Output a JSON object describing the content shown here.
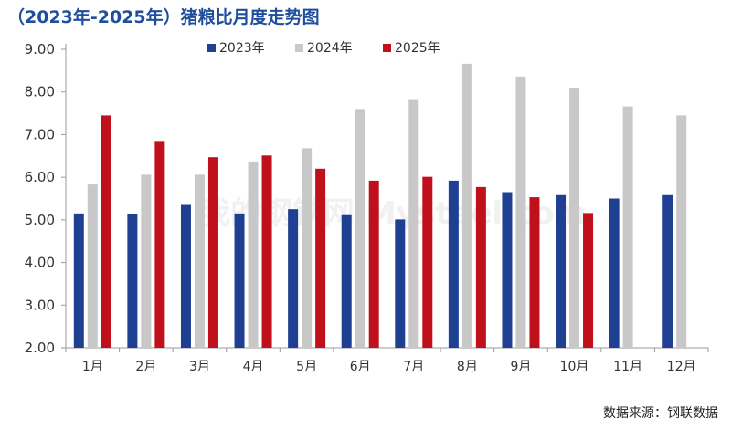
{
  "chart_data": {
    "type": "bar",
    "title": "（2023年-2025年）猪粮比月度走势图",
    "xlabel": "",
    "ylabel": "",
    "ylim": [
      2.0,
      9.0
    ],
    "yticks": [
      "2.00",
      "3.00",
      "4.00",
      "5.00",
      "6.00",
      "7.00",
      "8.00",
      "9.00"
    ],
    "categories": [
      "1月",
      "2月",
      "3月",
      "4月",
      "5月",
      "6月",
      "7月",
      "8月",
      "9月",
      "10月",
      "11月",
      "12月"
    ],
    "series": [
      {
        "name": "2023年",
        "color": "#1f3f93",
        "values": [
          5.15,
          5.14,
          5.35,
          5.15,
          5.25,
          5.11,
          5.01,
          5.92,
          5.65,
          5.58,
          5.5,
          5.58
        ]
      },
      {
        "name": "2024年",
        "color": "#c8c8c8",
        "values": [
          5.83,
          6.06,
          6.06,
          6.37,
          6.68,
          7.6,
          7.81,
          8.66,
          8.36,
          8.1,
          7.66,
          7.45
        ]
      },
      {
        "name": "2025年",
        "color": "#c0101c",
        "values": [
          7.45,
          6.83,
          6.47,
          6.51,
          6.2,
          5.92,
          6.01,
          5.77,
          5.53,
          5.16,
          null,
          null
        ]
      }
    ],
    "legend_position": "top-center",
    "grid": false
  },
  "source_text": "数据来源：钢联数据",
  "watermark_text": "我的钢铁网 Mysteel.com"
}
